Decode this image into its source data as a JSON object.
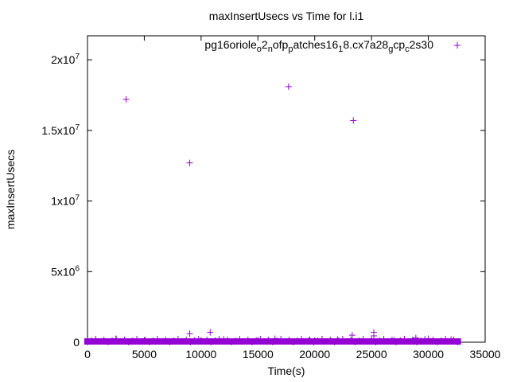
{
  "chart_data": {
    "type": "scatter",
    "title": "maxInsertUsecs vs Time for l.i1",
    "xlabel": "Time(s)",
    "ylabel": "maxInsertUsecs",
    "xlim": [
      0,
      35000
    ],
    "ylim": [
      0,
      21700000
    ],
    "grid": false,
    "legend_position": "top-right",
    "color": "#9400d3",
    "marker": "plus",
    "x_ticks": [
      {
        "value": 0,
        "label": "0"
      },
      {
        "value": 5000,
        "label": "5000"
      },
      {
        "value": 10000,
        "label": "10000"
      },
      {
        "value": 15000,
        "label": "15000"
      },
      {
        "value": 20000,
        "label": "20000"
      },
      {
        "value": 25000,
        "label": "25000"
      },
      {
        "value": 30000,
        "label": "30000"
      },
      {
        "value": 35000,
        "label": "35000"
      }
    ],
    "y_ticks": [
      {
        "value": 0,
        "base": "0",
        "exp": ""
      },
      {
        "value": 5000000,
        "base": "5x10",
        "exp": "6"
      },
      {
        "value": 10000000,
        "base": "1x10",
        "exp": "7"
      },
      {
        "value": 15000000,
        "base": "1.5x10",
        "exp": "7"
      },
      {
        "value": 20000000,
        "base": "2x10",
        "exp": "7"
      }
    ],
    "series": [
      {
        "name": "pg16oriole_o2_nofp_patches16_18.cx7a28_gcp_c2s30",
        "legend_parts": [
          {
            "t": "pg16oriole",
            "sub": false
          },
          {
            "t": "o",
            "sub": true
          },
          {
            "t": "2",
            "sub": false
          },
          {
            "t": "n",
            "sub": true
          },
          {
            "t": "ofp",
            "sub": false
          },
          {
            "t": "p",
            "sub": true
          },
          {
            "t": "atches16",
            "sub": false
          },
          {
            "t": "1",
            "sub": true
          },
          {
            "t": "8.cx7a28",
            "sub": false
          },
          {
            "t": "g",
            "sub": true
          },
          {
            "t": "cp",
            "sub": false
          },
          {
            "t": "c",
            "sub": true
          },
          {
            "t": "2s30",
            "sub": false
          }
        ],
        "points": [
          [
            3400,
            17200000
          ],
          [
            9000,
            12700000
          ],
          [
            17700,
            18100000
          ],
          [
            23400,
            15700000
          ],
          [
            9000,
            600000
          ],
          [
            10800,
            700000
          ],
          [
            23300,
            500000
          ],
          [
            25200,
            700000
          ],
          [
            25200,
            450000
          ],
          [
            28900,
            300000
          ],
          [
            2500,
            250000
          ],
          [
            12000,
            200000
          ],
          [
            16500,
            250000
          ],
          [
            19500,
            150000
          ],
          [
            22000,
            200000
          ],
          [
            27000,
            150000
          ],
          [
            30000,
            250000
          ],
          [
            32000,
            200000
          ]
        ],
        "baseline_band": {
          "x_range": [
            0,
            32600
          ],
          "y_range": [
            0,
            220000
          ]
        }
      }
    ],
    "legend_sample_marker": true
  }
}
